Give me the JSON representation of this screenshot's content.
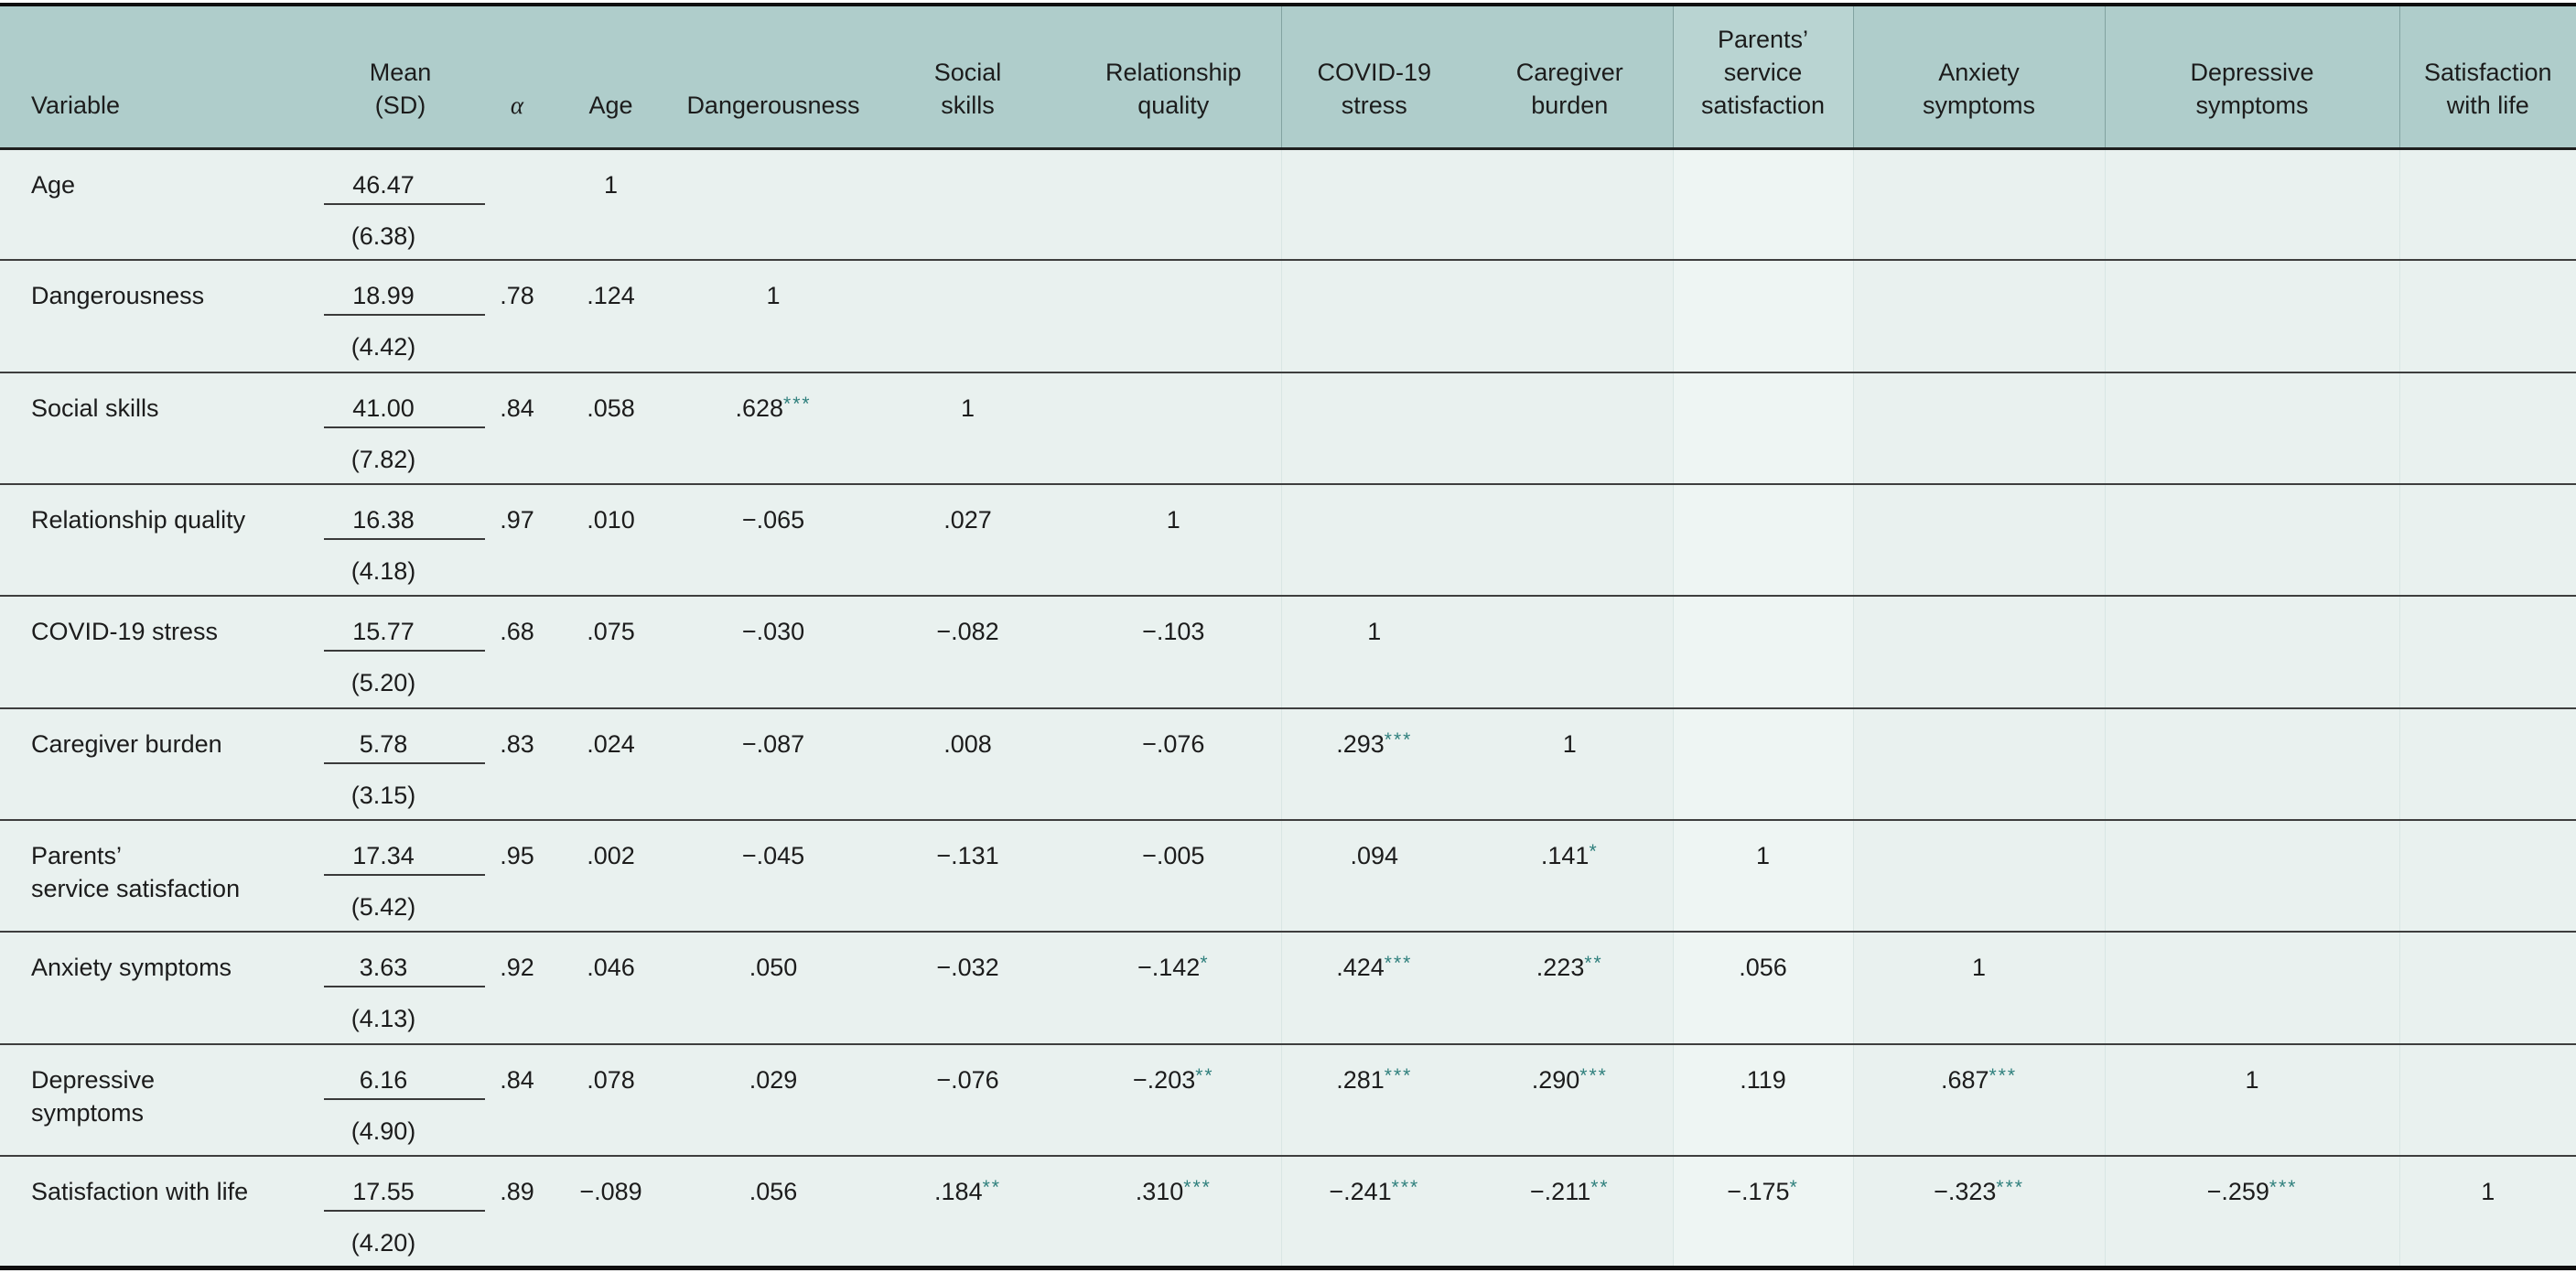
{
  "table": {
    "columns": [
      {
        "key": "variable",
        "label": "Variable"
      },
      {
        "key": "mean_sd",
        "label": "Mean\n(SD)"
      },
      {
        "key": "alpha",
        "label": "α"
      },
      {
        "key": "age",
        "label": "Age"
      },
      {
        "key": "dangerousness",
        "label": "Dangerousness"
      },
      {
        "key": "social_skills",
        "label": "Social\nskills"
      },
      {
        "key": "relationship_quality",
        "label": "Relationship\nquality"
      },
      {
        "key": "covid19_stress",
        "label": "COVID-19\nstress"
      },
      {
        "key": "caregiver_burden",
        "label": "Caregiver\nburden"
      },
      {
        "key": "parents_service_satisfaction",
        "label": "Parents’\nservice\nsatisfaction"
      },
      {
        "key": "anxiety_symptoms",
        "label": "Anxiety\nsymptoms"
      },
      {
        "key": "depressive_symptoms",
        "label": "Depressive\nsymptoms"
      },
      {
        "key": "satisfaction_with_life",
        "label": "Satisfaction\nwith life"
      }
    ],
    "rows": [
      {
        "label": "Age",
        "mean": "46.47",
        "sd": "(6.38)",
        "alpha": "",
        "corr": [
          "1"
        ]
      },
      {
        "label": "Dangerousness",
        "mean": "18.99",
        "sd": "(4.42)",
        "alpha": ".78",
        "corr": [
          ".124",
          "1"
        ]
      },
      {
        "label": "Social skills",
        "mean": "41.00",
        "sd": "(7.82)",
        "alpha": ".84",
        "corr": [
          ".058",
          ".628***",
          "1"
        ]
      },
      {
        "label": "Relationship quality",
        "mean": "16.38",
        "sd": "(4.18)",
        "alpha": ".97",
        "corr": [
          ".010",
          "−.065",
          ".027",
          "1"
        ]
      },
      {
        "label": "COVID-19 stress",
        "mean": "15.77",
        "sd": "(5.20)",
        "alpha": ".68",
        "corr": [
          ".075",
          "−.030",
          "−.082",
          "−.103",
          "1"
        ]
      },
      {
        "label": "Caregiver burden",
        "mean": "5.78",
        "sd": "(3.15)",
        "alpha": ".83",
        "corr": [
          ".024",
          "−.087",
          ".008",
          "−.076",
          ".293***",
          "1"
        ]
      },
      {
        "label": "Parents’\nservice satisfaction",
        "mean": "17.34",
        "sd": "(5.42)",
        "alpha": ".95",
        "corr": [
          ".002",
          "−.045",
          "−.131",
          "−.005",
          ".094",
          ".141*",
          "1"
        ]
      },
      {
        "label": "Anxiety symptoms",
        "mean": "3.63",
        "sd": "(4.13)",
        "alpha": ".92",
        "corr": [
          ".046",
          ".050",
          "−.032",
          "−.142*",
          ".424***",
          ".223**",
          ".056",
          "1"
        ]
      },
      {
        "label": "Depressive\nsymptoms",
        "mean": "6.16",
        "sd": "(4.90)",
        "alpha": ".84",
        "corr": [
          ".078",
          ".029",
          "−.076",
          "−.203**",
          ".281***",
          ".290***",
          ".119",
          ".687***",
          "1"
        ]
      },
      {
        "label": "Satisfaction with life",
        "mean": "17.55",
        "sd": "(4.20)",
        "alpha": ".89",
        "corr": [
          "−.089",
          ".056",
          ".184**",
          ".310***",
          "−.241***",
          "−.211**",
          "−.175*",
          "−.323***",
          "−.259***",
          "1"
        ]
      }
    ],
    "colors": {
      "header_bg": "#afcdcb",
      "header_bg_light_band": "#b9d4d2",
      "body_bg": "#e9f1ef",
      "body_bg_light_band": "#eef5f3",
      "significance_asterisk": "#2e7f7c",
      "text": "#1c1c1c"
    }
  }
}
